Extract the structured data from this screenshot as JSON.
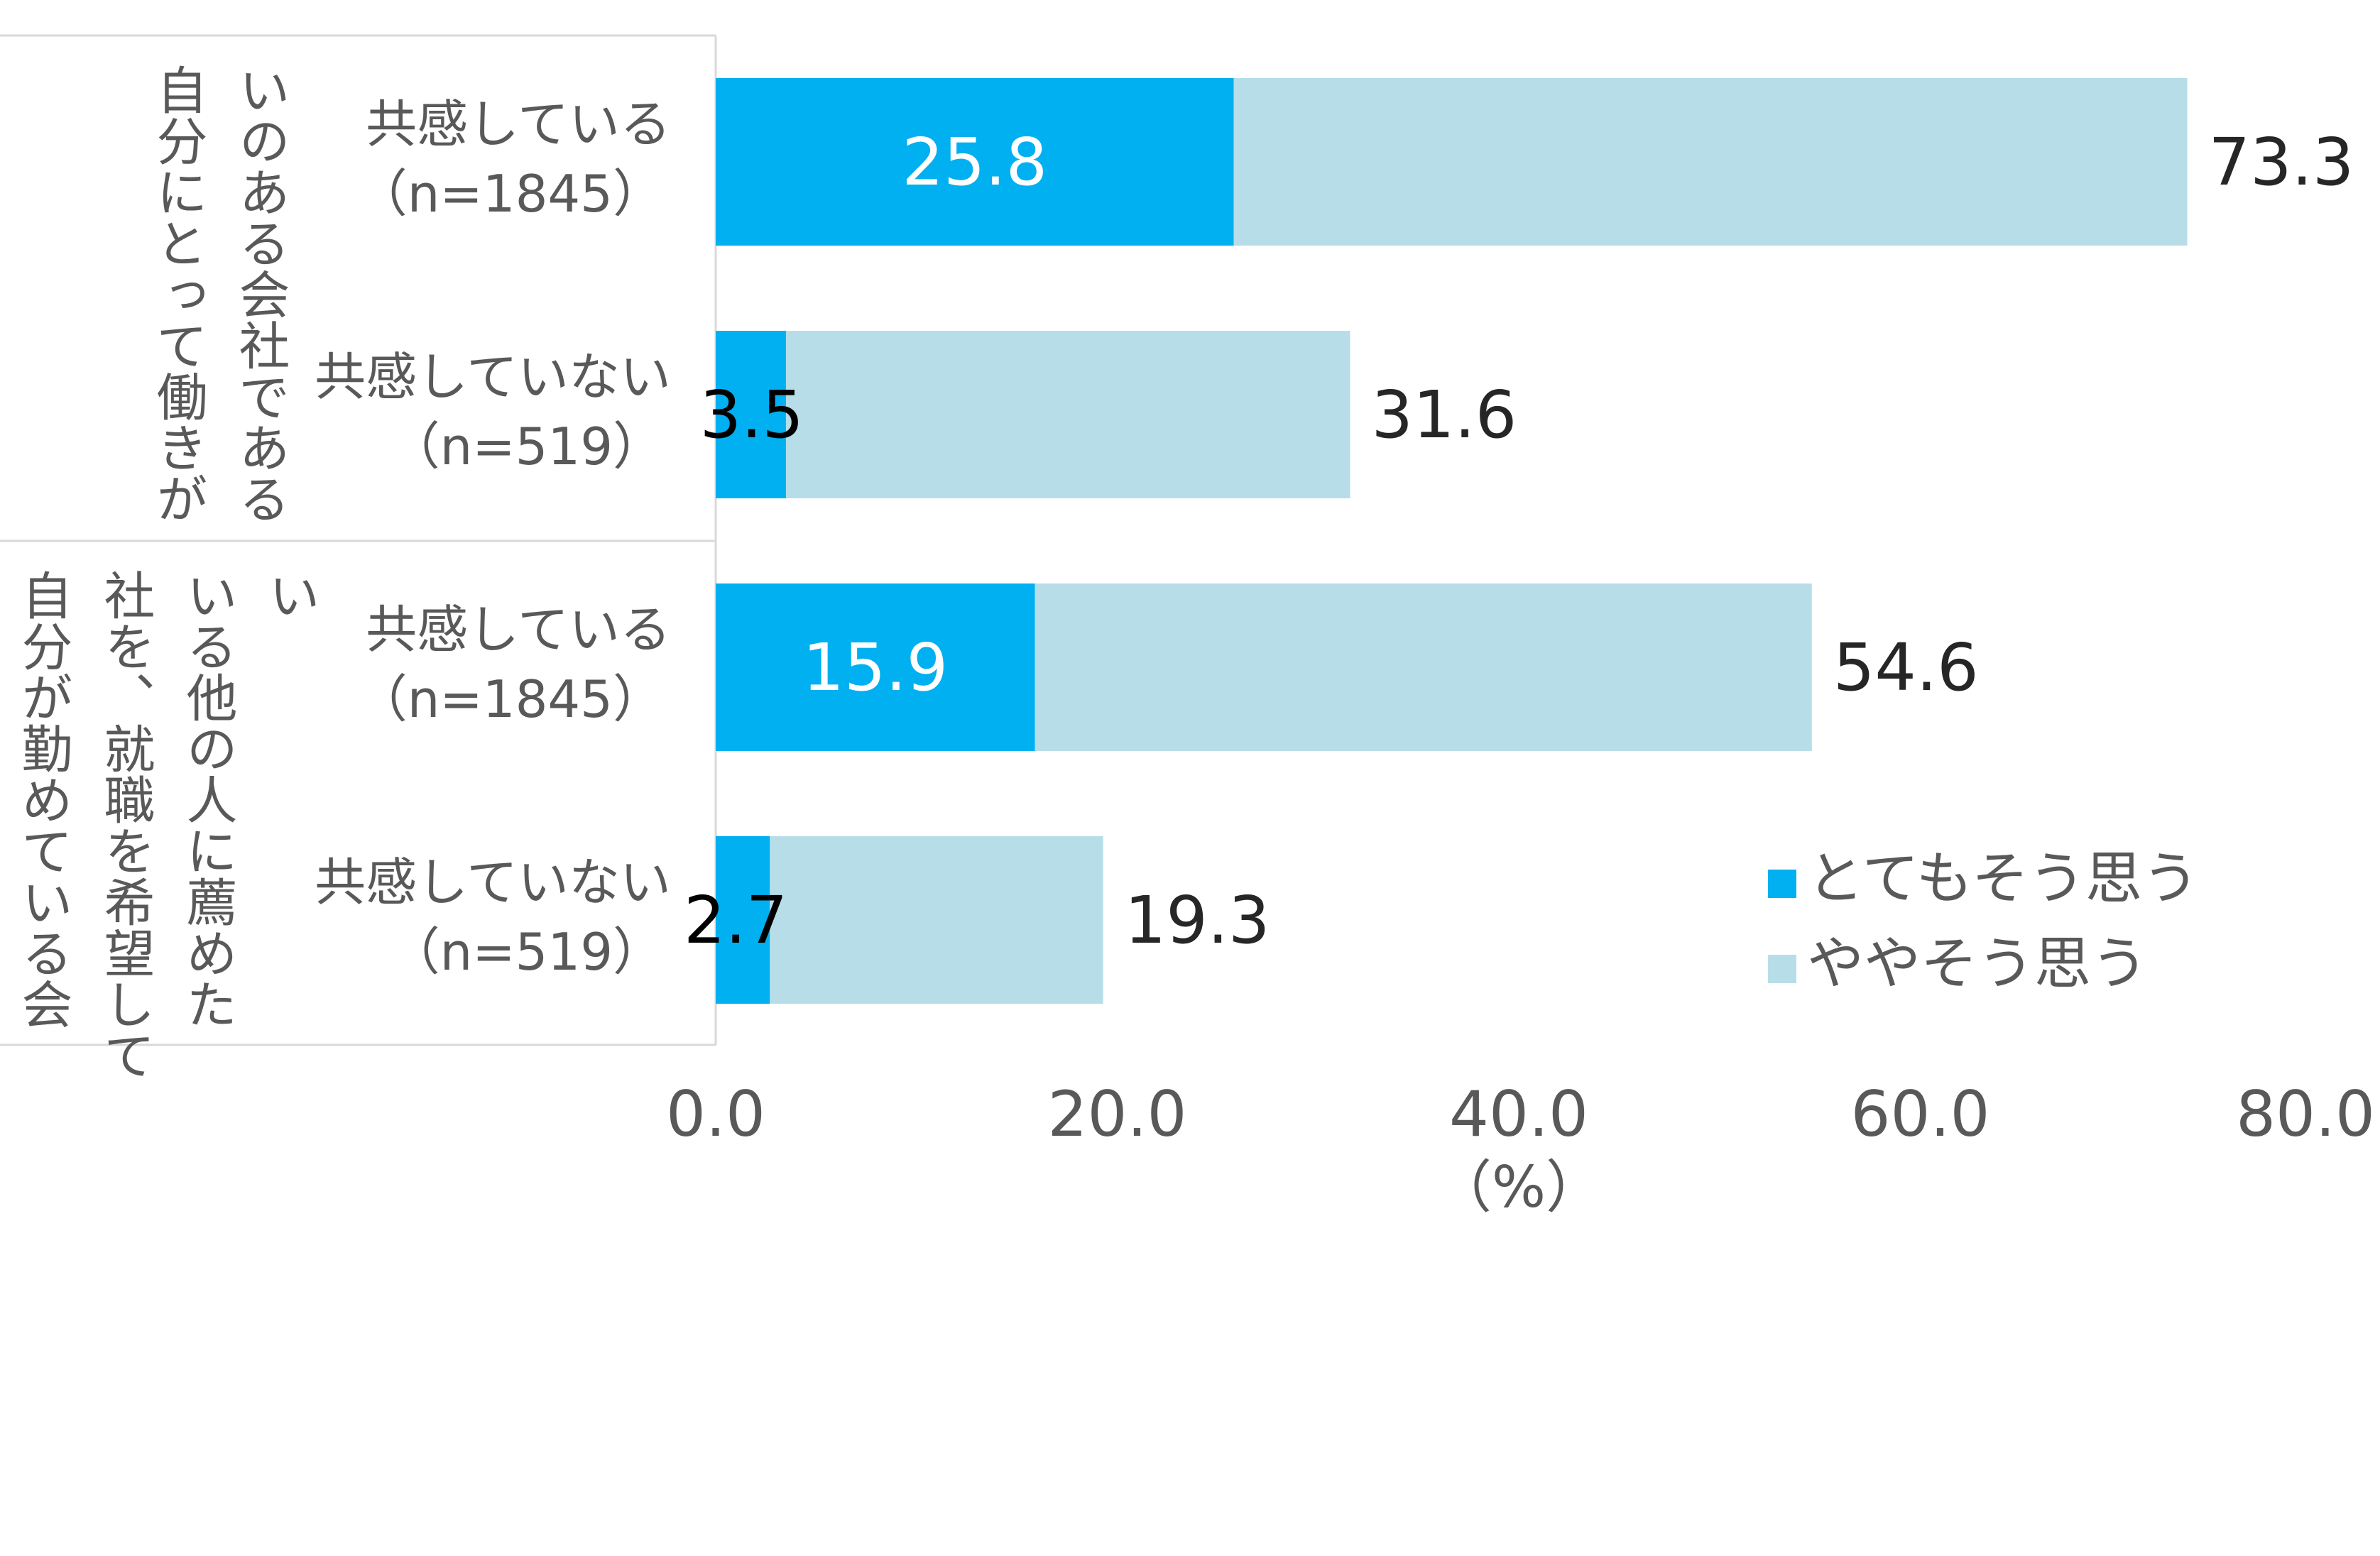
{
  "chart_data": {
    "type": "bar",
    "orientation": "horizontal",
    "stacked": true,
    "groups": [
      {
        "label": "自分にとって働きがいのある会社である",
        "label_lines": [
          "自分にとって働きが",
          "いのある会社である"
        ],
        "categories": [
          {
            "label": "共感している",
            "n_label": "（n=1845）",
            "values": [
              25.8,
              47.5
            ],
            "inner_label": "25.8",
            "total_label": "73.3"
          },
          {
            "label": "共感していない",
            "n_label": "（n=519）",
            "values": [
              3.5,
              28.1
            ],
            "inner_label": "3.5",
            "total_label": "31.6"
          }
        ]
      },
      {
        "label": "自分が勤めている会社を、就職を希望している他の人に薦めたい",
        "label_lines": [
          "自分が勤めている会",
          "社を、就職を希望して",
          "いる他の人に薦めた",
          "い"
        ],
        "categories": [
          {
            "label": "共感している",
            "n_label": "（n=1845）",
            "values": [
              15.9,
              38.7
            ],
            "inner_label": "15.9",
            "total_label": "54.6"
          },
          {
            "label": "共感していない",
            "n_label": "（n=519）",
            "values": [
              2.7,
              16.6
            ],
            "inner_label": "2.7",
            "total_label": "19.3"
          }
        ]
      }
    ],
    "series": [
      {
        "name": "とてもそう思う",
        "color": "#00b0f0"
      },
      {
        "name": "ややそう思う",
        "color": "#b7dee8"
      }
    ],
    "x_axis": {
      "min": 0,
      "max": 80,
      "ticks": [
        0,
        20,
        40,
        60,
        80
      ],
      "tick_labels": [
        "0.0",
        "20.0",
        "40.0",
        "60.0",
        "80.0"
      ],
      "unit_label": "（%）"
    },
    "grid": false,
    "legend_position": "bottom-right"
  }
}
